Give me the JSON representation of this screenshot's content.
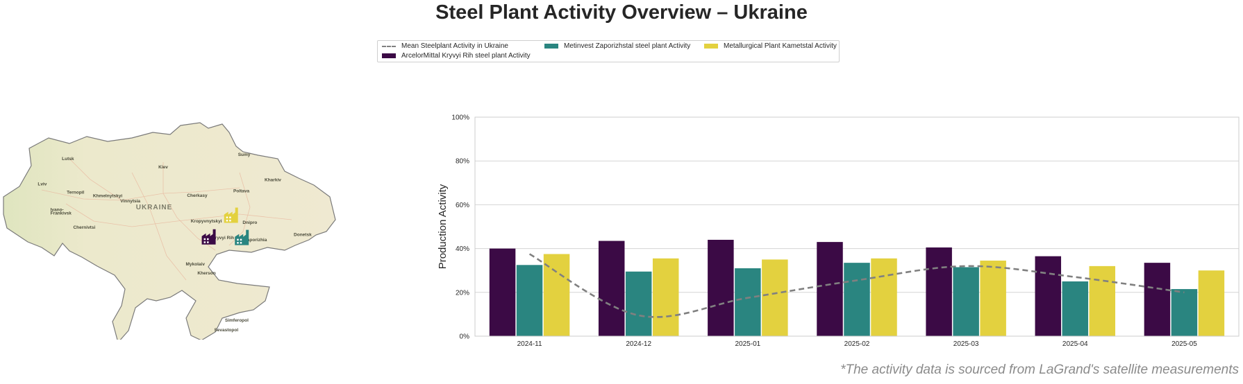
{
  "title": "Steel Plant Activity Overview – Ukraine",
  "footnote": "*The activity data is sourced from LaGrand's satellite measurements",
  "legend": {
    "mean": "Mean Steelplant Activity in Ukraine",
    "arcelor": "ArcelorMittal Kryvyi Rih steel plant Activity",
    "metinvest": "Metinvest Zaporizhstal steel plant Activity",
    "kametstal": "Metallurgical Plant Kametstal Activity"
  },
  "colors": {
    "arcelor": "#3b0a45",
    "metinvest": "#2a8580",
    "kametstal": "#e3d13f",
    "mean": "#808080"
  },
  "map": {
    "country_label": "UKRAINE",
    "cities": [
      {
        "name": "Kiev",
        "lon": 30.52,
        "lat": 50.45
      },
      {
        "name": "Kharkiv",
        "lon": 36.23,
        "lat": 49.99
      },
      {
        "name": "Lviv",
        "lon": 24.03,
        "lat": 49.84
      },
      {
        "name": "Lutsk",
        "lon": 25.33,
        "lat": 50.75
      },
      {
        "name": "Ternopil",
        "lon": 25.59,
        "lat": 49.55
      },
      {
        "name": "Khmelnytskyi",
        "lon": 27.0,
        "lat": 49.42
      },
      {
        "name": "Vinnytsia",
        "lon": 28.47,
        "lat": 49.23
      },
      {
        "name": "Ivano-",
        "lon": 24.71,
        "lat": 48.92
      },
      {
        "name": "Frankivsk",
        "lon": 24.71,
        "lat": 48.8
      },
      {
        "name": "Chernivtsi",
        "lon": 25.94,
        "lat": 48.29
      },
      {
        "name": "Cherkasy",
        "lon": 32.06,
        "lat": 49.44
      },
      {
        "name": "Poltava",
        "lon": 34.55,
        "lat": 49.59
      },
      {
        "name": "Sumy",
        "lon": 34.8,
        "lat": 50.91
      },
      {
        "name": "Kropyvnytskyi",
        "lon": 32.26,
        "lat": 48.51
      },
      {
        "name": "Dnipro",
        "lon": 35.05,
        "lat": 48.46
      },
      {
        "name": "Kryvyi Rih",
        "lon": 33.39,
        "lat": 47.91
      },
      {
        "name": "Zaporizhia",
        "lon": 35.14,
        "lat": 47.84
      },
      {
        "name": "Donetsk",
        "lon": 37.8,
        "lat": 48.02
      },
      {
        "name": "Mykolaiv",
        "lon": 31.99,
        "lat": 46.97
      },
      {
        "name": "Kherson",
        "lon": 32.62,
        "lat": 46.64
      },
      {
        "name": "Simferopol",
        "lon": 34.1,
        "lat": 44.95
      },
      {
        "name": "Sevastopol",
        "lon": 33.52,
        "lat": 44.6
      }
    ],
    "plants": [
      {
        "series": "arcelor",
        "lon": 33.3,
        "lat": 47.72
      },
      {
        "series": "metinvest",
        "lon": 35.08,
        "lat": 47.7
      },
      {
        "series": "kametstal",
        "lon": 34.5,
        "lat": 48.5
      }
    ]
  },
  "chart_data": {
    "type": "bar",
    "ylabel": "Production Activity",
    "xlabel": "",
    "ylim": [
      0,
      100
    ],
    "y_ticks": [
      "0%",
      "20%",
      "40%",
      "60%",
      "80%",
      "100%"
    ],
    "y_tick_values": [
      0,
      20,
      40,
      60,
      80,
      100
    ],
    "categories": [
      "2024-11",
      "2024-12",
      "2025-01",
      "2025-02",
      "2025-03",
      "2025-04",
      "2025-05"
    ],
    "series": [
      {
        "name": "ArcelorMittal Kryvyi Rih steel plant Activity",
        "key": "arcelor",
        "values": [
          40,
          43.5,
          44,
          43,
          40.5,
          36.5,
          33.5
        ]
      },
      {
        "name": "Metinvest Zaporizhstal steel plant Activity",
        "key": "metinvest",
        "values": [
          32.5,
          29.5,
          31,
          33.5,
          31.5,
          25,
          21.5
        ]
      },
      {
        "name": "Metallurgical Plant Kametstal Activity",
        "key": "kametstal",
        "values": [
          37.5,
          35.5,
          35,
          35.5,
          34.5,
          32,
          30
        ]
      }
    ],
    "mean_line": {
      "name": "Mean Steelplant Activity in Ukraine",
      "values": [
        37.5,
        9.5,
        17.5,
        25.5,
        32,
        27,
        20
      ],
      "style": "dashed"
    },
    "grid": "horizontal",
    "legend_position": "top-center"
  }
}
